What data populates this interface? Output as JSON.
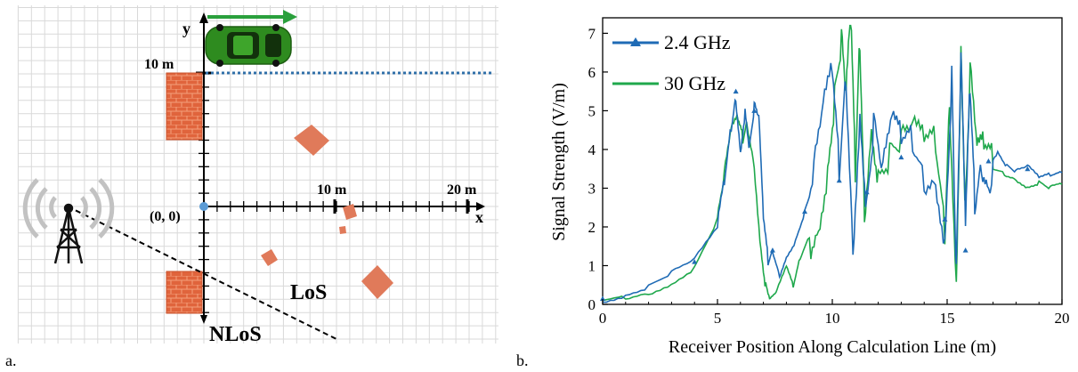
{
  "panel_a": {
    "label": "a.",
    "y_axis_letter": "y",
    "x_axis_letter": "x",
    "mark_10m_y": "10 m",
    "mark_10m_x": "10 m",
    "mark_20m_x": "20 m",
    "origin_label": "(0, 0)",
    "los_label": "LoS",
    "nlos_label": "NLoS",
    "icons": [
      "car-icon",
      "motion-arrow-icon",
      "brick-wall-icon",
      "tree-obstacle-icon",
      "antenna-tower-icon",
      "signal-wave-icon"
    ],
    "colors": {
      "car": "#2e8b1f",
      "arrow": "#2aa03c",
      "wall": "#e0643c",
      "obstacle": "#e07a5a",
      "calc_line": "#2f6fa8",
      "origin_dot": "#5b9bd5"
    }
  },
  "panel_b": {
    "label": "b."
  },
  "chart_data": {
    "type": "line",
    "xlabel": "Receiver Position Along Calculation Line (m)",
    "ylabel": "Signal Strength (V/m)",
    "xlim": [
      0,
      20
    ],
    "ylim": [
      0,
      7.4
    ],
    "xticks": [
      "0",
      "5",
      "10",
      "15",
      "20"
    ],
    "yticks": [
      "0",
      "1",
      "2",
      "3",
      "4",
      "5",
      "6",
      "7"
    ],
    "grid": false,
    "legend_position": "top-left",
    "series": [
      {
        "name": "30 GHz",
        "color": "#1fa84c",
        "marker": "none",
        "x": [
          0,
          1,
          2,
          3,
          4,
          5,
          5.3,
          5.6,
          5.9,
          6.1,
          6.3,
          6.6,
          6.9,
          7.1,
          7.3,
          7.6,
          8.0,
          8.3,
          8.6,
          9.0,
          9.4,
          9.8,
          10.1,
          10.4,
          10.6,
          10.8,
          11.0,
          11.2,
          11.4,
          11.7,
          12.0,
          12.5,
          13.0,
          13.5,
          14.0,
          14.5,
          14.9,
          15.1,
          15.4,
          15.6,
          15.8,
          16.0,
          16.3,
          16.6,
          17.0,
          17.5,
          18.0,
          18.5,
          19.0,
          19.5,
          20
        ],
        "y": [
          0.1,
          0.2,
          0.35,
          0.6,
          1.0,
          2.2,
          3.2,
          4.3,
          4.6,
          4.2,
          4.8,
          3.8,
          1.6,
          0.6,
          0.1,
          0.3,
          0.9,
          0.4,
          1.2,
          1.8,
          2.6,
          4.0,
          5.6,
          6.6,
          4.8,
          7.0,
          3.0,
          6.9,
          2.8,
          5.2,
          3.8,
          4.0,
          3.9,
          4.0,
          3.7,
          3.9,
          2.0,
          5.8,
          1.2,
          6.9,
          2.4,
          5.6,
          3.4,
          3.6,
          3.5,
          3.4,
          3.3,
          3.1,
          3.2,
          3.0,
          3.1
        ]
      },
      {
        "name": "2.4 GHz",
        "color": "#1f6bb5",
        "marker": "triangle",
        "x": [
          0,
          1,
          2,
          3,
          4,
          5,
          5.3,
          5.6,
          5.8,
          6.0,
          6.2,
          6.4,
          6.6,
          6.8,
          7.0,
          7.2,
          7.4,
          7.7,
          8.0,
          8.4,
          8.8,
          9.2,
          9.6,
          10.0,
          10.3,
          10.6,
          10.9,
          11.2,
          11.5,
          11.8,
          12.2,
          12.6,
          13.0,
          13.5,
          14.0,
          14.5,
          14.9,
          15.2,
          15.4,
          15.6,
          15.8,
          16.0,
          16.2,
          16.5,
          16.8,
          17.2,
          17.6,
          18.0,
          18.5,
          19.0,
          19.5,
          20
        ],
        "y": [
          0.15,
          0.3,
          0.5,
          0.8,
          1.1,
          1.9,
          3.0,
          4.6,
          5.5,
          4.2,
          5.2,
          4.1,
          5.0,
          4.6,
          2.0,
          1.0,
          1.4,
          0.8,
          1.3,
          1.7,
          2.4,
          3.1,
          4.5,
          5.5,
          3.2,
          6.1,
          2.0,
          5.5,
          2.9,
          4.6,
          3.0,
          4.2,
          3.8,
          4.1,
          3.5,
          3.8,
          2.2,
          6.2,
          0.6,
          5.8,
          1.4,
          5.2,
          2.6,
          4.0,
          3.7,
          4.0,
          3.6,
          3.4,
          3.5,
          3.2,
          3.3,
          3.4
        ]
      }
    ]
  }
}
